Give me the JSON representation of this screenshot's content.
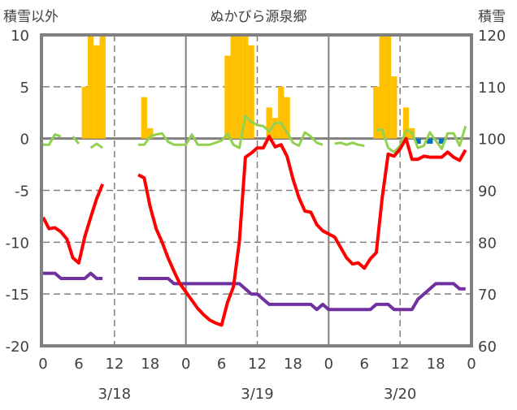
{
  "chart_data": {
    "type": "bar+line",
    "title": "ぬかびら源泉郷",
    "left_axis_label": "積雪以外",
    "right_axis_label": "積雪",
    "left_ylim": [
      -20,
      10
    ],
    "left_ticks": [
      "10",
      "5",
      "0",
      "-5",
      "-10",
      "-15",
      "-20"
    ],
    "right_ylim": [
      60,
      120
    ],
    "right_ticks": [
      "120",
      "110",
      "100",
      "90",
      "80",
      "70",
      "60"
    ],
    "x_range_hours": [
      0,
      72
    ],
    "x_tick_labels": [
      "0",
      "6",
      "12",
      "18",
      "0",
      "6",
      "12",
      "18",
      "0",
      "6",
      "12",
      "18",
      "0"
    ],
    "date_labels": [
      "3/18",
      "3/19",
      "3/20"
    ],
    "grid": "on",
    "colors": {
      "bars": "#FFC000",
      "neg_bars": "#0070C0",
      "temperature": "#FF0000",
      "green": "#92D050",
      "snow_depth": "#7030A0",
      "axis": "#808080"
    },
    "bars": [
      [
        7,
        5
      ],
      [
        8,
        10
      ],
      [
        9,
        9
      ],
      [
        10,
        10
      ],
      [
        17,
        4
      ],
      [
        18,
        1
      ],
      [
        31,
        8
      ],
      [
        32,
        10
      ],
      [
        33,
        10
      ],
      [
        34,
        10
      ],
      [
        35,
        9
      ],
      [
        38,
        3
      ],
      [
        39,
        2
      ],
      [
        40,
        5
      ],
      [
        41,
        4
      ],
      [
        56,
        5
      ],
      [
        57,
        10
      ],
      [
        58,
        10
      ],
      [
        59,
        6
      ],
      [
        61,
        3
      ],
      [
        62,
        1
      ]
    ],
    "neg_bars": [
      [
        63,
        -0.5
      ],
      [
        65,
        -0.5
      ],
      [
        67,
        -0.5
      ]
    ],
    "temperature": [
      -7.6,
      -8.7,
      -8.6,
      -9.0,
      -9.7,
      -11.5,
      -12,
      -9.5,
      -7.6,
      -5.8,
      -4.4,
      null,
      null,
      null,
      null,
      null,
      -3.5,
      -3.8,
      -6.6,
      -8.7,
      -10,
      -11.5,
      -12.8,
      -14,
      -14.8,
      -15.6,
      -16.4,
      -17,
      -17.5,
      -17.8,
      -18,
      -15.8,
      -14.3,
      -9.9,
      -1.8,
      -1.4,
      -0.9,
      -0.9,
      0.2,
      -0.8,
      -0.6,
      -1.7,
      -3.9,
      -5.7,
      -7,
      -7.1,
      -8.3,
      -8.9,
      -9.2,
      -9.5,
      -10.5,
      -11.5,
      -12.1,
      -12,
      -12.5,
      -11.6,
      -11,
      -5.7,
      -1.5,
      -1.7,
      -1,
      0,
      -2,
      -2,
      -1.7,
      -1.8,
      -1.8,
      -1.8,
      -1.3,
      -1.8,
      -2.1,
      -1.1
    ],
    "green": [
      -0.6,
      -0.6,
      0.4,
      0.2,
      null,
      0.2,
      -0.5,
      null,
      -0.9,
      -0.5,
      -0.9,
      null,
      null,
      null,
      null,
      null,
      -0.6,
      -0.6,
      0.2,
      0.4,
      0.5,
      -0.3,
      -0.6,
      -0.6,
      -0.6,
      0.4,
      -0.6,
      -0.6,
      -0.6,
      -0.4,
      -0.2,
      0.5,
      -0.6,
      -0.9,
      2.2,
      1.6,
      1.3,
      1.2,
      0.7,
      1.5,
      1.5,
      0.6,
      -0.4,
      -0.7,
      0.6,
      0.2,
      -0.4,
      -0.6,
      null,
      -0.5,
      -0.4,
      -0.6,
      -0.4,
      -0.6,
      -0.7,
      null,
      0.8,
      0.9,
      -0.9,
      -1.3,
      -0.7,
      0.8,
      0.6,
      -0.9,
      -0.7,
      0.6,
      -0.2,
      -1,
      0.5,
      0.5,
      -0.7,
      1.2
    ],
    "snow_depth": [
      74,
      74,
      74,
      73,
      73,
      73,
      73,
      73,
      74,
      73,
      73,
      null,
      null,
      null,
      null,
      null,
      73,
      73,
      73,
      73,
      73,
      73,
      72,
      72,
      72,
      72,
      72,
      72,
      72,
      72,
      72,
      72,
      72,
      72,
      71,
      70,
      70,
      69,
      68,
      68,
      68,
      68,
      68,
      68,
      68,
      68,
      67,
      68,
      67,
      67,
      67,
      67,
      67,
      67,
      67,
      67,
      68,
      68,
      68,
      67,
      67,
      67,
      67,
      69,
      70,
      71,
      72,
      72,
      72,
      72,
      71,
      71
    ]
  }
}
